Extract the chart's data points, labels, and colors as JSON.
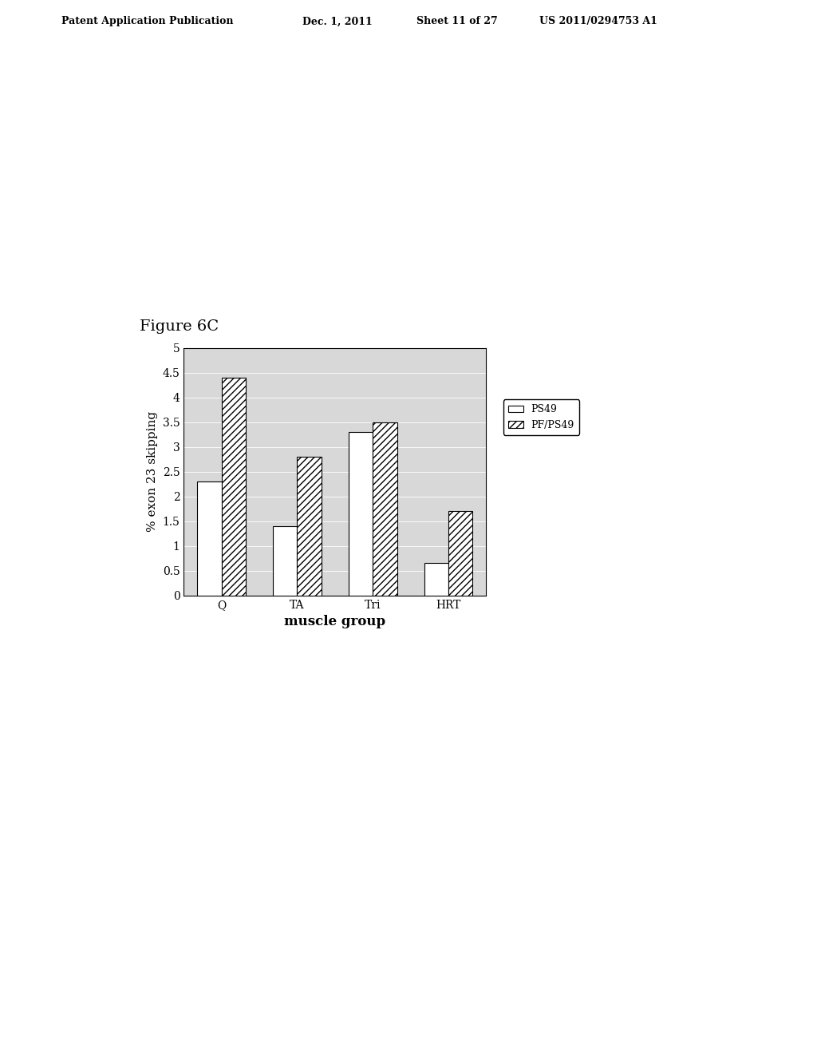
{
  "categories": [
    "Q",
    "TA",
    "Tri",
    "HRT"
  ],
  "series": {
    "PS49": [
      2.3,
      1.4,
      3.3,
      0.65
    ],
    "PF/PS49": [
      4.4,
      2.8,
      3.5,
      1.7
    ]
  },
  "ylabel": "% exon 23 skipping",
  "xlabel": "muscle group",
  "ylim": [
    0,
    5
  ],
  "yticks": [
    0,
    0.5,
    1,
    1.5,
    2,
    2.5,
    3,
    3.5,
    4,
    4.5,
    5
  ],
  "ytick_labels": [
    "0",
    "0.5",
    "1",
    "1.5",
    "2",
    "2.5",
    "3",
    "3.5",
    "4",
    "4.5",
    "5"
  ],
  "figure_label": "Figure 6C",
  "bar_width": 0.32,
  "legend_labels": [
    "PS49",
    "PF/PS49"
  ],
  "title_fontsize": 14,
  "axis_fontsize": 11,
  "tick_fontsize": 10,
  "header_left": "Patent Application Publication",
  "header_date": "Dec. 1, 2011",
  "header_sheet": "Sheet 11 of 27",
  "header_patent": "US 2011/0294753 A1"
}
